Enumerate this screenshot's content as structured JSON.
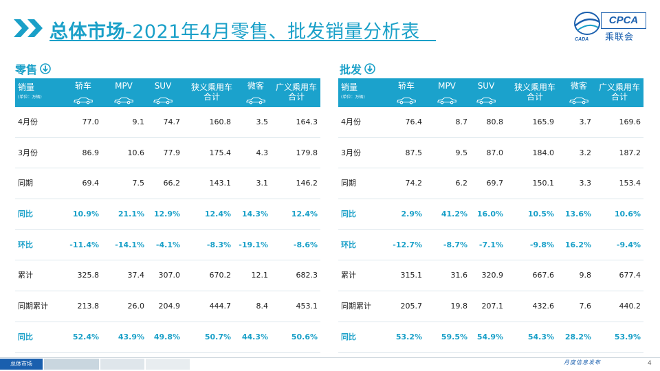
{
  "header": {
    "title_bold": "总体市场",
    "title_rest": "-2021年4月零售、批发销量分析表",
    "logo_text": "CPCA",
    "logo_cn": "乘联会",
    "logo_small": "CADA"
  },
  "columns": {
    "metric": "销量",
    "unit": "(单位：万辆)",
    "c1": "轿车",
    "c2": "MPV",
    "c3": "SUV",
    "c4a": "狭义乘用车",
    "c4b": "合计",
    "c5": "微客",
    "c6a": "广义乘用车",
    "c6b": "合计"
  },
  "retail": {
    "label": "零售",
    "rows": [
      {
        "label": "4月份",
        "v": [
          "77.0",
          "9.1",
          "74.7",
          "160.8",
          "3.5",
          "164.3"
        ],
        "pct": false
      },
      {
        "label": "3月份",
        "v": [
          "86.9",
          "10.6",
          "77.9",
          "175.4",
          "4.3",
          "179.8"
        ],
        "pct": false
      },
      {
        "label": "同期",
        "v": [
          "69.4",
          "7.5",
          "66.2",
          "143.1",
          "3.1",
          "146.2"
        ],
        "pct": false
      },
      {
        "label": "同比",
        "v": [
          "10.9%",
          "21.1%",
          "12.9%",
          "12.4%",
          "14.3%",
          "12.4%"
        ],
        "pct": true
      },
      {
        "label": "环比",
        "v": [
          "-11.4%",
          "-14.1%",
          "-4.1%",
          "-8.3%",
          "-19.1%",
          "-8.6%"
        ],
        "pct": true
      },
      {
        "label": "累计",
        "v": [
          "325.8",
          "37.4",
          "307.0",
          "670.2",
          "12.1",
          "682.3"
        ],
        "pct": false
      },
      {
        "label": "同期累计",
        "v": [
          "213.8",
          "26.0",
          "204.9",
          "444.7",
          "8.4",
          "453.1"
        ],
        "pct": false
      },
      {
        "label": "同比",
        "v": [
          "52.4%",
          "43.9%",
          "49.8%",
          "50.7%",
          "44.3%",
          "50.6%"
        ],
        "pct": true
      }
    ]
  },
  "wholesale": {
    "label": "批发",
    "rows": [
      {
        "label": "4月份",
        "v": [
          "76.4",
          "8.7",
          "80.8",
          "165.9",
          "3.7",
          "169.6"
        ],
        "pct": false
      },
      {
        "label": "3月份",
        "v": [
          "87.5",
          "9.5",
          "87.0",
          "184.0",
          "3.2",
          "187.2"
        ],
        "pct": false
      },
      {
        "label": "同期",
        "v": [
          "74.2",
          "6.2",
          "69.7",
          "150.1",
          "3.3",
          "153.4"
        ],
        "pct": false
      },
      {
        "label": "同比",
        "v": [
          "2.9%",
          "41.2%",
          "16.0%",
          "10.5%",
          "13.6%",
          "10.6%"
        ],
        "pct": true
      },
      {
        "label": "环比",
        "v": [
          "-12.7%",
          "-8.7%",
          "-7.1%",
          "-9.8%",
          "16.2%",
          "-9.4%"
        ],
        "pct": true
      },
      {
        "label": "累计",
        "v": [
          "315.1",
          "31.6",
          "320.9",
          "667.6",
          "9.8",
          "677.4"
        ],
        "pct": false
      },
      {
        "label": "同期累计",
        "v": [
          "205.7",
          "19.8",
          "207.1",
          "432.6",
          "7.6",
          "440.2"
        ],
        "pct": false
      },
      {
        "label": "同比",
        "v": [
          "53.2%",
          "59.5%",
          "54.9%",
          "54.3%",
          "28.2%",
          "53.9%"
        ],
        "pct": true
      }
    ]
  },
  "footer": {
    "tab1": "总体市场",
    "right_text": "月度信息发布",
    "page": "4"
  },
  "colors": {
    "accent": "#1aa0c8",
    "header_bg": "#1ba2cc",
    "logo": "#1a5fae"
  },
  "icons": {
    "section": "down-arrow-circle-icon",
    "columns": "car-icon"
  }
}
